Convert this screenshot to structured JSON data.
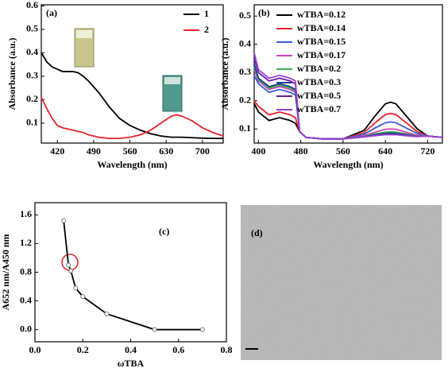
{
  "chart_data": [
    {
      "type": "line",
      "title": "(a)",
      "xlabel": "Wavelength (nm)",
      "ylabel": "Absorbance (a.u.)",
      "xlim": [
        389,
        740
      ],
      "ylim": [
        0.015,
        0.605
      ],
      "xticks": [
        420,
        490,
        560,
        630,
        700
      ],
      "yticks": [
        0.1,
        0.2,
        0.3,
        0.4,
        0.5,
        0.6
      ],
      "legend": "upper right",
      "x": [
        389,
        400,
        410,
        420,
        430,
        440,
        450,
        460,
        470,
        480,
        500,
        520,
        540,
        560,
        580,
        600,
        620,
        640,
        650,
        660,
        680,
        700,
        720,
        740
      ],
      "series": [
        {
          "name": "1",
          "color": "#000000",
          "values": [
            0.4,
            0.36,
            0.34,
            0.33,
            0.32,
            0.32,
            0.32,
            0.315,
            0.3,
            0.28,
            0.23,
            0.17,
            0.12,
            0.09,
            0.07,
            0.055,
            0.045,
            0.04,
            0.04,
            0.04,
            0.038,
            0.036,
            0.035,
            0.035
          ]
        },
        {
          "name": "2",
          "color": "#e8242b",
          "values": [
            0.21,
            0.16,
            0.12,
            0.09,
            0.08,
            0.075,
            0.07,
            0.065,
            0.06,
            0.05,
            0.04,
            0.035,
            0.035,
            0.04,
            0.05,
            0.07,
            0.1,
            0.13,
            0.135,
            0.13,
            0.11,
            0.08,
            0.06,
            0.045
          ]
        }
      ]
    },
    {
      "type": "line",
      "title": "(b)",
      "xlabel": "Wavelength (nm)",
      "ylabel": "Absorbance (a.u.)",
      "xlim": [
        392,
        748
      ],
      "ylim": [
        0.05,
        0.54
      ],
      "xticks": [
        400,
        480,
        560,
        640,
        720
      ],
      "yticks": [
        0.1,
        0.2,
        0.3,
        0.4,
        0.5
      ],
      "legend": "upper center",
      "x": [
        392,
        400,
        420,
        440,
        460,
        470,
        478,
        490,
        520,
        560,
        600,
        620,
        640,
        650,
        660,
        680,
        700,
        720,
        748
      ],
      "series": [
        {
          "name": "wTBA=0.12",
          "color": "#000000",
          "values": [
            0.19,
            0.16,
            0.13,
            0.14,
            0.13,
            0.12,
            0.09,
            0.07,
            0.065,
            0.065,
            0.095,
            0.145,
            0.189,
            0.195,
            0.189,
            0.145,
            0.101,
            0.075,
            0.07
          ]
        },
        {
          "name": "wTBA=0.14",
          "color": "#e8242b",
          "values": [
            0.2,
            0.18,
            0.15,
            0.16,
            0.15,
            0.14,
            0.09,
            0.07,
            0.065,
            0.065,
            0.087,
            0.121,
            0.151,
            0.155,
            0.151,
            0.121,
            0.091,
            0.075,
            0.07
          ]
        },
        {
          "name": "wTBA=0.15",
          "color": "#3a5bd9",
          "values": [
            0.29,
            0.26,
            0.23,
            0.24,
            0.23,
            0.22,
            0.09,
            0.07,
            0.065,
            0.065,
            0.081,
            0.103,
            0.122,
            0.125,
            0.122,
            0.103,
            0.084,
            0.075,
            0.07
          ]
        },
        {
          "name": "wTBA=0.17",
          "color": "#d63fbe",
          "values": [
            0.31,
            0.27,
            0.24,
            0.25,
            0.24,
            0.23,
            0.09,
            0.07,
            0.065,
            0.065,
            0.076,
            0.088,
            0.099,
            0.1,
            0.099,
            0.088,
            0.078,
            0.075,
            0.07
          ]
        },
        {
          "name": "wTBA=0.2",
          "color": "#3bb44a",
          "values": [
            0.32,
            0.275,
            0.245,
            0.255,
            0.245,
            0.235,
            0.09,
            0.07,
            0.065,
            0.065,
            0.074,
            0.082,
            0.089,
            0.09,
            0.089,
            0.082,
            0.075,
            0.075,
            0.07
          ]
        },
        {
          "name": "wTBA=0.3",
          "color": "#1f3a93",
          "values": [
            0.33,
            0.28,
            0.25,
            0.26,
            0.25,
            0.24,
            0.09,
            0.07,
            0.065,
            0.065,
            0.073,
            0.079,
            0.084,
            0.085,
            0.084,
            0.079,
            0.074,
            0.075,
            0.07
          ]
        },
        {
          "name": "wTBA=0.5",
          "color": "#6a1fa0",
          "values": [
            0.35,
            0.3,
            0.27,
            0.28,
            0.27,
            0.26,
            0.09,
            0.07,
            0.065,
            0.065,
            0.072,
            0.076,
            0.08,
            0.08,
            0.08,
            0.076,
            0.073,
            0.075,
            0.07
          ]
        },
        {
          "name": "wTBA=0.7",
          "color": "#9b3fd6",
          "values": [
            0.37,
            0.31,
            0.28,
            0.29,
            0.28,
            0.27,
            0.09,
            0.07,
            0.065,
            0.065,
            0.072,
            0.076,
            0.08,
            0.08,
            0.08,
            0.076,
            0.073,
            0.075,
            0.07
          ]
        }
      ]
    },
    {
      "type": "line",
      "title": "(c)",
      "xlabel": "ωTBA",
      "ylabel": "A652 nm/A450 nm",
      "markers": true,
      "xlim": [
        0,
        0.8
      ],
      "ylim": [
        -0.17,
        1.77
      ],
      "xticks": [
        {
          "value": 0,
          "label": "0.0"
        },
        {
          "value": 0.2,
          "label": "0.2"
        },
        {
          "value": 0.4,
          "label": "0.4"
        },
        {
          "value": 0.6,
          "label": "0.6"
        },
        {
          "value": 0.8,
          "label": "0.8"
        }
      ],
      "yticks": [
        {
          "value": 0,
          "label": "0.0"
        },
        {
          "value": 0.4,
          "label": "0.4"
        },
        {
          "value": 0.8,
          "label": "0.8"
        },
        {
          "value": 1.2,
          "label": "1.2"
        },
        {
          "value": 1.6,
          "label": "1.6"
        }
      ],
      "x": [
        0.12,
        0.14,
        0.15,
        0.17,
        0.2,
        0.3,
        0.5,
        0.7
      ],
      "series": [
        {
          "color": "#000000",
          "values": [
            1.52,
            0.9,
            0.82,
            0.58,
            0.46,
            0.22,
            0.0,
            0.0
          ]
        }
      ]
    },
    {
      "type": "image",
      "title": "(d)"
    }
  ]
}
